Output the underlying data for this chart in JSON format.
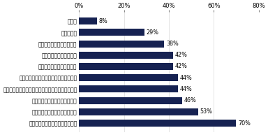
{
  "categories": [
    "その他",
    "罰則の軽さ",
    "人手不足による余裕のなさ",
    "パワハラの定義の曖昧さ",
    "失敗が許されない企業風土",
    "上司と部下とのコミュニケーション不足",
    "育成・指導方法に対するジェネレーションギャップ",
    "企業のパワハラ対策の不十分さ",
    "上司と部下との信頼関係の欠如",
    "パワハラをする側の人間性の問題"
  ],
  "values": [
    8,
    29,
    38,
    42,
    42,
    44,
    44,
    46,
    53,
    70
  ],
  "bar_color": "#162252",
  "background_color": "#ffffff",
  "xlim": [
    0,
    80
  ],
  "xticks": [
    0,
    20,
    40,
    60,
    80
  ],
  "xticklabels": [
    "0%",
    "20%",
    "40%",
    "60%",
    "80%"
  ],
  "label_fontsize": 5.5,
  "value_fontsize": 5.8,
  "tick_fontsize": 6.0,
  "bar_height": 0.62
}
